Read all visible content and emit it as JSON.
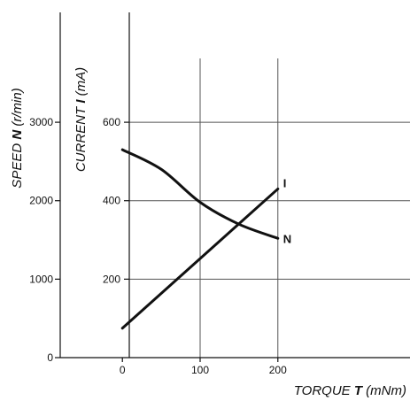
{
  "chart_data": {
    "type": "line",
    "x_axis": {
      "label_prefix": "TORQUE ",
      "label_symbol": "T",
      "label_unit": " (mNm)",
      "ticks": [
        0,
        100,
        200
      ],
      "xlim": [
        -80,
        370
      ]
    },
    "y_axis_speed": {
      "label_prefix": "SPEED ",
      "label_symbol": "N",
      "label_unit": " (r/min)",
      "ticks": [
        0,
        1000,
        2000,
        3000
      ],
      "ylim": [
        0,
        4400
      ]
    },
    "y_axis_current": {
      "label_prefix": "CURRENT ",
      "label_symbol": "I",
      "label_unit": " (mA)",
      "ticks": [
        200,
        400,
        600
      ],
      "ylim": [
        0,
        880
      ]
    },
    "grid": true,
    "series": [
      {
        "name": "N",
        "axis": "speed",
        "points": [
          [
            0,
            2650
          ],
          [
            50,
            2400
          ],
          [
            100,
            1980
          ],
          [
            150,
            1700
          ],
          [
            200,
            1520
          ]
        ]
      },
      {
        "name": "I",
        "axis": "current",
        "points": [
          [
            0,
            75
          ],
          [
            200,
            430
          ]
        ]
      }
    ]
  }
}
